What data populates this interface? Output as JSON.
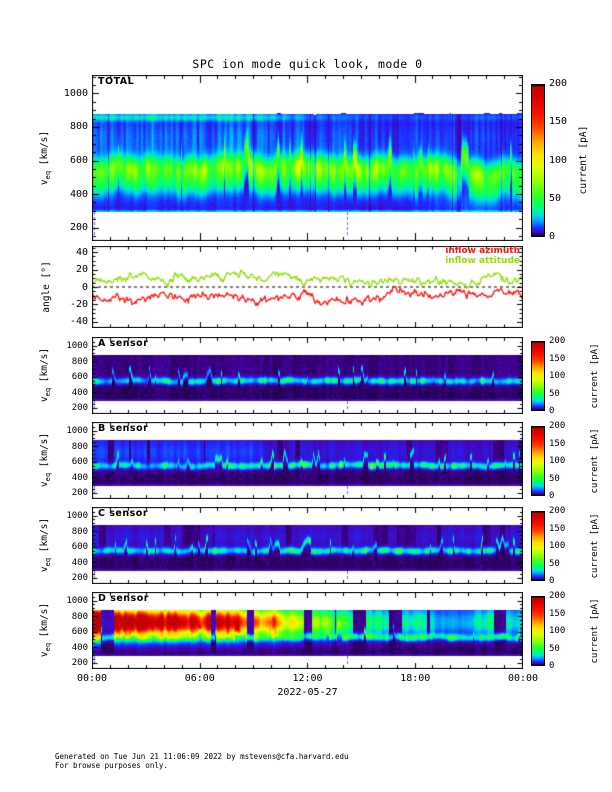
{
  "title": "SPC ion mode quick look, mode 0",
  "xaxis": {
    "tick_labels": [
      "00:00",
      "06:00",
      "12:00",
      "18:00",
      "00:00"
    ],
    "date_label": "2022-05-27",
    "minor_tick_interval_hours": 1,
    "major_tick_interval_hours": 6
  },
  "velocity_axis": {
    "label_main": "v",
    "label_sub": "eq",
    "label_units": " [km/s]",
    "ticks": [
      200,
      400,
      600,
      800,
      1000
    ],
    "minor_step": 50,
    "range": [
      120,
      1110
    ]
  },
  "angle_axis": {
    "label": "angle [°]",
    "ticks": [
      -40,
      -20,
      0,
      20,
      40
    ],
    "minor_step": 5,
    "range": [
      -47,
      47
    ]
  },
  "colorbar": {
    "label": "current [pA]",
    "ticks": [
      0,
      50,
      100,
      150,
      200
    ],
    "range": [
      0,
      200
    ],
    "gradient_bottom_to_top": [
      {
        "at": 0,
        "color": "#000010"
      },
      {
        "at": 2,
        "color": "#4a00a8"
      },
      {
        "at": 5,
        "color": "#2028ff"
      },
      {
        "at": 10,
        "color": "#00a0ff"
      },
      {
        "at": 14,
        "color": "#00e0d8"
      },
      {
        "at": 19,
        "color": "#00ff78"
      },
      {
        "at": 26,
        "color": "#2dff2d"
      },
      {
        "at": 36,
        "color": "#96ff00"
      },
      {
        "at": 46,
        "color": "#e1ff00"
      },
      {
        "at": 54,
        "color": "#ffe100"
      },
      {
        "at": 63,
        "color": "#ffa000"
      },
      {
        "at": 72,
        "color": "#ff4600"
      },
      {
        "at": 80,
        "color": "#ff1400"
      },
      {
        "at": 93,
        "color": "#d40000"
      },
      {
        "at": 99,
        "color": "#c30000"
      },
      {
        "at": 99.3,
        "color": "#000000"
      },
      {
        "at": 100,
        "color": "#000000"
      }
    ]
  },
  "legend": {
    "azimuth": {
      "label": "inflow azimuth",
      "color": "#ff1414"
    },
    "attitude": {
      "label": "inflow attitude",
      "color": "#8fe00a"
    }
  },
  "footer": {
    "line1": "Generated on Tue Jun 21 11:06:09 2022 by mstevens@cfa.harvard.edu",
    "line2": "For browse purposes only."
  },
  "chart_data": [
    {
      "type": "heatmap",
      "name": "TOTAL",
      "ylabel": "v_eq [km/s]",
      "yticks": [
        200,
        400,
        600,
        800,
        1000
      ],
      "yrange": [
        120,
        1110
      ],
      "x_hours_range": [
        0,
        24
      ],
      "colorbar_label": "current [pA]",
      "colorbar_ticks": [
        0,
        50,
        100,
        150,
        200
      ],
      "data_extent_kms": [
        290,
        878
      ],
      "core_speed_kms_hourly": [
        545,
        550,
        560,
        552,
        548,
        542,
        540,
        556,
        562,
        548,
        542,
        560,
        572,
        562,
        556,
        546,
        556,
        542,
        540,
        556,
        546,
        526,
        520,
        536,
        532
      ],
      "core_amp_pA_hourly": [
        55,
        58,
        62,
        57,
        55,
        53,
        57,
        60,
        62,
        57,
        55,
        60,
        66,
        62,
        60,
        57,
        60,
        55,
        57,
        61,
        57,
        52,
        50,
        54,
        53
      ],
      "upper_band_pA_hourly": [
        13,
        13,
        12,
        13,
        12,
        11,
        12,
        13,
        12,
        11,
        10,
        10,
        9,
        9,
        9,
        8,
        8,
        7,
        8,
        8,
        7,
        7,
        8,
        9,
        9
      ],
      "top_edge_band_pA_hourly": [
        22,
        22,
        22,
        22,
        22,
        21,
        20,
        21,
        20,
        19,
        17,
        13,
        10,
        8,
        7,
        7,
        6,
        6,
        6,
        6,
        6,
        6,
        7,
        8,
        8
      ],
      "lower_band_pA_hourly": [
        6,
        6,
        6,
        6,
        6,
        6,
        6,
        6,
        6,
        6,
        5,
        5,
        5,
        5,
        4,
        4,
        4,
        5,
        6,
        7,
        9,
        10,
        10,
        9,
        8
      ],
      "seed": 11
    },
    {
      "type": "line",
      "name": "angle",
      "ylabel": "angle [°]",
      "yticks": [
        -40,
        -20,
        0,
        20,
        40
      ],
      "yrange": [
        -47,
        47
      ],
      "x_hours_range": [
        0,
        24
      ],
      "zero_line": {
        "style": "dashed",
        "color": "#000000"
      },
      "series": [
        {
          "name": "inflow azimuth",
          "color": "#ff1414",
          "hourly_deg": [
            -8,
            -14,
            -13,
            -15,
            -12,
            -10,
            -13,
            -12,
            -11,
            -13,
            -9,
            -12,
            -11,
            -13,
            -12,
            -14,
            -8,
            -5,
            -7,
            -9,
            -6,
            -7,
            -9,
            -6,
            -9
          ]
        },
        {
          "name": "inflow attitude",
          "color": "#8fe00a",
          "hourly_deg": [
            10,
            9,
            12,
            10,
            9,
            11,
            10,
            12,
            11,
            9,
            10,
            12,
            9,
            10,
            9,
            6,
            9,
            7,
            8,
            6,
            8,
            6,
            7,
            9,
            8
          ]
        }
      ],
      "noise_deg": {
        "smooth": 5,
        "fast": 3.5,
        "jitter": 2.2
      }
    },
    {
      "type": "heatmap",
      "name": "A sensor",
      "ylabel": "v_eq [km/s]",
      "yticks": [
        200,
        400,
        600,
        800,
        1000
      ],
      "yrange": [
        120,
        1110
      ],
      "x_hours_range": [
        0,
        24
      ],
      "colorbar_label": "current [pA]",
      "colorbar_ticks": [
        0,
        50,
        100,
        150,
        200
      ],
      "data_extent_kms": [
        293,
        875
      ],
      "core_speed_kms_hourly": [
        540,
        545,
        550,
        545,
        542,
        540,
        545,
        550,
        548,
        544,
        548,
        552,
        550,
        548,
        550,
        552,
        550,
        548,
        550,
        552,
        548,
        545,
        542,
        546,
        544
      ],
      "core_amp_pA_hourly": [
        24,
        26,
        25,
        23,
        25,
        24,
        27,
        29,
        27,
        25,
        29,
        31,
        29,
        27,
        29,
        31,
        29,
        27,
        29,
        31,
        29,
        27,
        25,
        27,
        26
      ],
      "halo_pA_hourly": [
        0,
        0,
        0,
        0,
        0,
        0,
        0,
        0,
        0,
        0,
        0,
        0,
        0,
        0,
        0,
        0,
        0,
        0,
        0,
        0,
        0,
        0,
        0,
        0,
        0
      ],
      "seed": 21
    },
    {
      "type": "heatmap",
      "name": "B sensor",
      "ylabel": "v_eq [km/s]",
      "yticks": [
        200,
        400,
        600,
        800,
        1000
      ],
      "yrange": [
        120,
        1110
      ],
      "x_hours_range": [
        0,
        24
      ],
      "colorbar_label": "current [pA]",
      "colorbar_ticks": [
        0,
        50,
        100,
        150,
        200
      ],
      "data_extent_kms": [
        293,
        875
      ],
      "core_speed_kms_hourly": [
        538,
        544,
        552,
        546,
        540,
        538,
        546,
        552,
        548,
        542,
        548,
        554,
        552,
        548,
        552,
        554,
        550,
        546,
        550,
        554,
        550,
        546,
        542,
        548,
        545
      ],
      "core_amp_pA_hourly": [
        26,
        28,
        27,
        25,
        27,
        26,
        29,
        31,
        29,
        27,
        32,
        36,
        34,
        30,
        34,
        38,
        34,
        30,
        34,
        38,
        34,
        30,
        28,
        32,
        30
      ],
      "halo_pA_hourly": [
        3,
        3,
        3,
        3,
        3,
        3,
        3,
        3,
        3,
        3,
        2,
        2,
        2,
        2,
        2,
        2,
        2,
        2,
        2,
        2,
        2,
        2,
        2,
        2,
        2
      ],
      "seed": 31
    },
    {
      "type": "heatmap",
      "name": "C sensor",
      "ylabel": "v_eq [km/s]",
      "yticks": [
        200,
        400,
        600,
        800,
        1000
      ],
      "yrange": [
        120,
        1110
      ],
      "x_hours_range": [
        0,
        24
      ],
      "colorbar_label": "current [pA]",
      "colorbar_ticks": [
        0,
        50,
        100,
        150,
        200
      ],
      "data_extent_kms": [
        293,
        875
      ],
      "core_speed_kms_hourly": [
        540,
        546,
        550,
        544,
        541,
        539,
        545,
        551,
        547,
        543,
        547,
        552,
        550,
        547,
        550,
        552,
        549,
        546,
        549,
        552,
        549,
        546,
        542,
        547,
        544
      ],
      "core_amp_pA_hourly": [
        25,
        27,
        26,
        24,
        26,
        25,
        28,
        30,
        28,
        26,
        30,
        33,
        31,
        29,
        31,
        33,
        31,
        29,
        31,
        33,
        31,
        29,
        27,
        29,
        28
      ],
      "halo_pA_hourly": [
        2,
        2,
        2,
        2,
        2,
        2,
        2,
        2,
        2,
        2,
        2,
        2,
        2,
        2,
        2,
        2,
        2,
        2,
        2,
        2,
        2,
        2,
        2,
        2,
        2
      ],
      "seed": 41
    },
    {
      "type": "heatmap",
      "name": "D sensor",
      "ylabel": "v_eq [km/s]",
      "yticks": [
        200,
        400,
        600,
        800,
        1000
      ],
      "yrange": [
        120,
        1110
      ],
      "x_hours_range": [
        0,
        24
      ],
      "colorbar_label": "current [pA]",
      "colorbar_ticks": [
        0,
        50,
        100,
        150,
        200
      ],
      "data_extent_kms": [
        293,
        875
      ],
      "core_speed_kms_hourly": [
        525,
        530,
        535,
        528,
        525,
        522,
        530,
        535,
        532,
        528,
        532,
        536,
        534,
        530,
        534,
        536,
        532,
        528,
        532,
        536,
        532,
        528,
        525,
        528,
        526
      ],
      "core_amp_pA_hourly": [
        30,
        33,
        31,
        29,
        31,
        30,
        33,
        35,
        33,
        31,
        34,
        37,
        35,
        33,
        35,
        37,
        35,
        33,
        35,
        37,
        35,
        33,
        31,
        33,
        32
      ],
      "halo_pA_hourly": [
        16,
        16,
        15,
        16,
        14,
        15,
        13,
        14,
        13,
        11,
        12,
        10,
        9,
        8,
        7,
        6,
        6,
        5,
        6,
        5,
        4,
        5,
        6,
        5,
        5
      ],
      "seed": 51
    }
  ]
}
